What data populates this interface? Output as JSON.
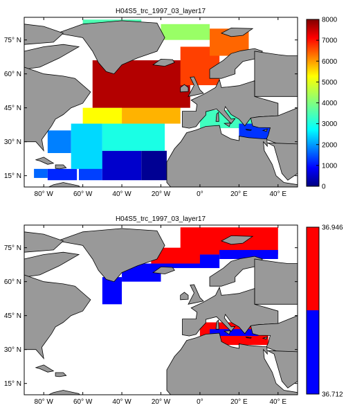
{
  "chart_data": [
    {
      "type": "heatmap",
      "title": "H04S5_trc_1997_03_layer17",
      "x_ticks": [
        "80° W",
        "60° W",
        "40° W",
        "20° W",
        "0°",
        "20° E",
        "40° E"
      ],
      "y_ticks": [
        "75° N",
        "60° N",
        "45° N",
        "30° N",
        "15° N"
      ],
      "xlim": [
        -90,
        50
      ],
      "ylim": [
        10,
        85
      ],
      "colorbar": {
        "range": [
          0,
          8000
        ],
        "ticks": [
          "8000",
          "7000",
          "6000",
          "5000",
          "4000",
          "3000",
          "2000",
          "1000",
          "0"
        ],
        "colormap": "jet"
      },
      "ocean_blocks": [
        {
          "lon0": -85,
          "lon1": -78,
          "lat0": 14,
          "lat1": 18,
          "value": 1800
        },
        {
          "lon0": -78,
          "lon1": -63,
          "lat0": 13,
          "lat1": 18,
          "value": 1300
        },
        {
          "lon0": -62,
          "lon1": -50,
          "lat0": 13,
          "lat1": 26,
          "value": 1500
        },
        {
          "lon0": -78,
          "lon1": -66,
          "lat0": 25,
          "lat1": 35,
          "value": 2000
        },
        {
          "lon0": -66,
          "lon1": -50,
          "lat0": 18,
          "lat1": 38,
          "value": 2700
        },
        {
          "lon0": -50,
          "lon1": -30,
          "lat0": 13,
          "lat1": 26,
          "value": 600
        },
        {
          "lon0": -30,
          "lon1": -17,
          "lat0": 13,
          "lat1": 26,
          "value": 150
        },
        {
          "lon0": -50,
          "lon1": -18,
          "lat0": 26,
          "lat1": 38,
          "value": 3200
        },
        {
          "lon0": -60,
          "lon1": -40,
          "lat0": 38,
          "lat1": 45,
          "value": 5000
        },
        {
          "lon0": -40,
          "lon1": -10,
          "lat0": 38,
          "lat1": 48,
          "value": 5600
        },
        {
          "lon0": -55,
          "lon1": -5,
          "lat0": 45,
          "lat1": 66,
          "value": 7600
        },
        {
          "lon0": -10,
          "lon1": 10,
          "lat0": 55,
          "lat1": 72,
          "value": 6500
        },
        {
          "lon0": 5,
          "lon1": 25,
          "lat0": 68,
          "lat1": 80,
          "value": 6200
        },
        {
          "lon0": -20,
          "lon1": 5,
          "lat0": 75,
          "lat1": 82,
          "value": 4200
        },
        {
          "lon0": -60,
          "lon1": -30,
          "lat0": 80,
          "lat1": 84,
          "value": 3600
        },
        {
          "lon0": 0,
          "lon1": 30,
          "lat0": 36,
          "lat1": 44,
          "value": 3500
        },
        {
          "lon0": 20,
          "lon1": 36,
          "lat0": 31,
          "lat1": 38,
          "value": 1400
        }
      ]
    },
    {
      "type": "heatmap",
      "title": "H04S5_trc_1997_03_layer17",
      "x_ticks": [
        "80° W",
        "60° W",
        "40° W",
        "20° W",
        "0°",
        "20° E",
        "40° E"
      ],
      "y_ticks": [
        "75° N",
        "60° N",
        "45° N",
        "30° N",
        "15° N"
      ],
      "xlim": [
        -90,
        50
      ],
      "ylim": [
        10,
        85
      ],
      "colorbar": {
        "range": [
          36.712,
          36.946
        ],
        "ticks": [
          "36.946",
          "36.712"
        ],
        "colors": [
          "#ff0000",
          "#0000ff"
        ]
      },
      "regions": [
        {
          "lon0": -50,
          "lon1": -40,
          "lat0": 50,
          "lat1": 62,
          "value": 36.75
        },
        {
          "lon0": -40,
          "lon1": -20,
          "lat0": 60,
          "lat1": 68,
          "value": 36.75
        },
        {
          "lon0": -20,
          "lon1": 10,
          "lat0": 66,
          "lat1": 72,
          "value": 36.75
        },
        {
          "lon0": -25,
          "lon1": 0,
          "lat0": 68,
          "lat1": 75,
          "value": 36.9
        },
        {
          "lon0": -10,
          "lon1": 40,
          "lat0": 72,
          "lat1": 84,
          "value": 36.9
        },
        {
          "lon0": 10,
          "lon1": 40,
          "lat0": 70,
          "lat1": 74,
          "value": 36.75
        },
        {
          "lon0": 0,
          "lon1": 35,
          "lat0": 32,
          "lat1": 42,
          "value": 36.9
        },
        {
          "lon0": 5,
          "lon1": 30,
          "lat0": 36,
          "lat1": 39,
          "value": 36.75
        }
      ]
    }
  ]
}
